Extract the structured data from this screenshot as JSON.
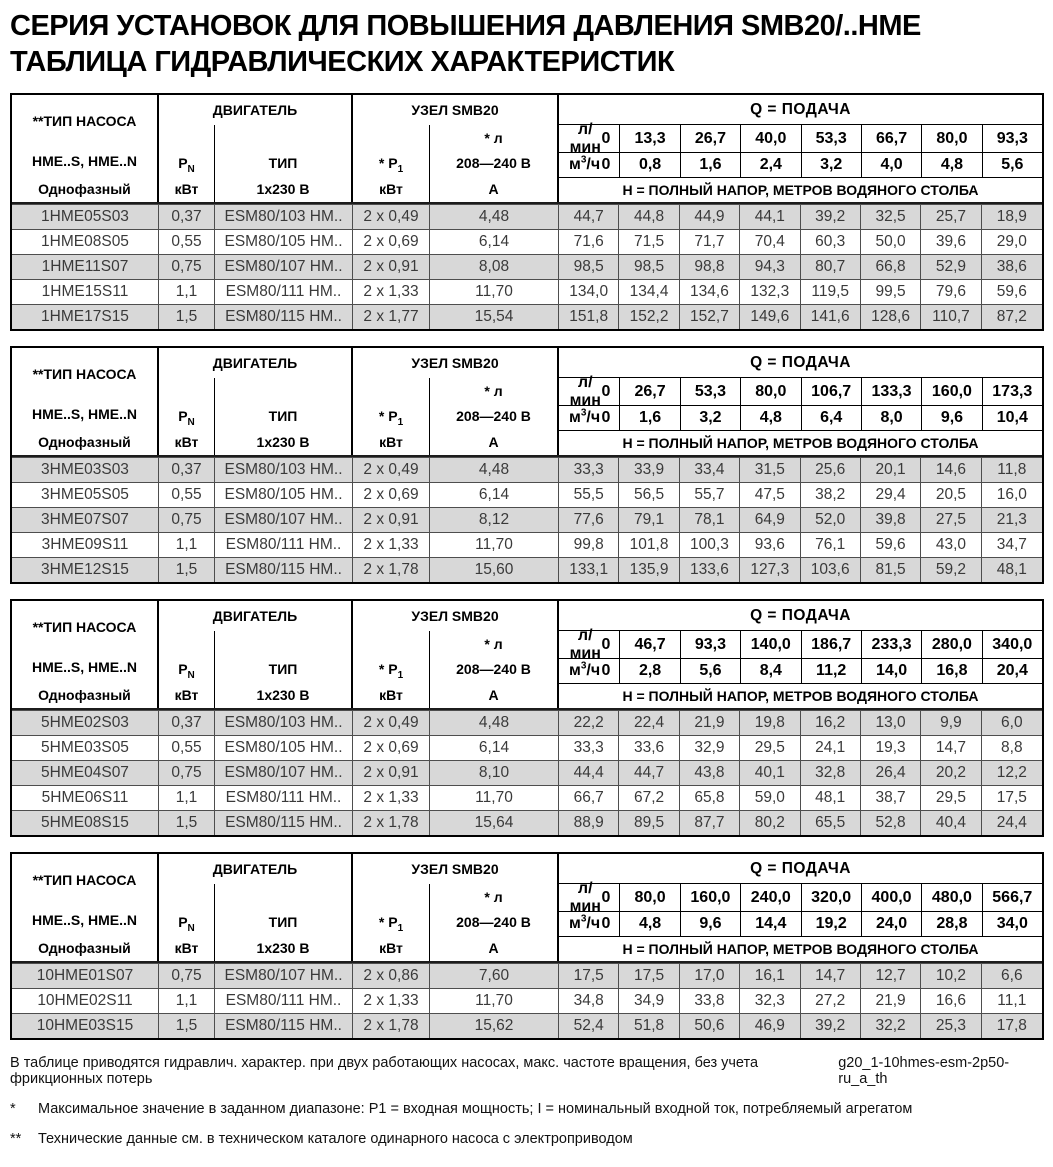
{
  "title": {
    "line1": "СЕРИЯ УСТАНОВОК ДЛЯ ПОВЫШЕНИЯ ДАВЛЕНИЯ SMB20/..HME",
    "line2": "ТАБЛИЦА ГИДРАВЛИЧЕСКИХ ХАРАКТЕРИСТИК"
  },
  "labels": {
    "pump_type": "**ТИП НАСОСА",
    "pump_models": "HME..S, HME..N",
    "pump_phase": "Однофазный",
    "motor": "ДВИГАТЕЛЬ",
    "pn_main": "P",
    "pn_sub": "N",
    "kw": "кВт",
    "type": "ТИП",
    "voltage": "1x230 В",
    "unit": "УЗЕЛ SMB20",
    "p1_main": "* P",
    "p1_sub": "1",
    "current": "* л",
    "range": "208—240 В",
    "amp": "А",
    "q_header": "Q = ПОДАЧА",
    "lmin": "л/мин",
    "m3h_main": "м",
    "m3h_sup": "3",
    "m3h_rest": "/ч",
    "zero": "0",
    "h_header": "Н = ПОЛНЫЙ НАПОР, МЕТРОВ ВОДЯНОГО СТОЛБА"
  },
  "tables": [
    {
      "flow_lmin": [
        "13,3",
        "26,7",
        "40,0",
        "53,3",
        "66,7",
        "80,0",
        "93,3"
      ],
      "flow_m3h": [
        "0,8",
        "1,6",
        "2,4",
        "3,2",
        "4,0",
        "4,8",
        "5,6"
      ],
      "rows": [
        {
          "model": "1HME05S03",
          "pn": "0,37",
          "type": "ESM80/103 HM..",
          "p1": "2 x 0,49",
          "amps": "4,48",
          "heads": [
            "44,7",
            "44,8",
            "44,9",
            "44,1",
            "39,2",
            "32,5",
            "25,7",
            "18,9"
          ]
        },
        {
          "model": "1HME08S05",
          "pn": "0,55",
          "type": "ESM80/105 HM..",
          "p1": "2 x 0,69",
          "amps": "6,14",
          "heads": [
            "71,6",
            "71,5",
            "71,7",
            "70,4",
            "60,3",
            "50,0",
            "39,6",
            "29,0"
          ]
        },
        {
          "model": "1HME11S07",
          "pn": "0,75",
          "type": "ESM80/107 HM..",
          "p1": "2 x 0,91",
          "amps": "8,08",
          "heads": [
            "98,5",
            "98,5",
            "98,8",
            "94,3",
            "80,7",
            "66,8",
            "52,9",
            "38,6"
          ]
        },
        {
          "model": "1HME15S11",
          "pn": "1,1",
          "type": "ESM80/111 HM..",
          "p1": "2 x 1,33",
          "amps": "11,70",
          "heads": [
            "134,0",
            "134,4",
            "134,6",
            "132,3",
            "119,5",
            "99,5",
            "79,6",
            "59,6"
          ]
        },
        {
          "model": "1HME17S15",
          "pn": "1,5",
          "type": "ESM80/115 HM..",
          "p1": "2 x 1,77",
          "amps": "15,54",
          "heads": [
            "151,8",
            "152,2",
            "152,7",
            "149,6",
            "141,6",
            "128,6",
            "110,7",
            "87,2"
          ]
        }
      ]
    },
    {
      "flow_lmin": [
        "26,7",
        "53,3",
        "80,0",
        "106,7",
        "133,3",
        "160,0",
        "173,3"
      ],
      "flow_m3h": [
        "1,6",
        "3,2",
        "4,8",
        "6,4",
        "8,0",
        "9,6",
        "10,4"
      ],
      "rows": [
        {
          "model": "3HME03S03",
          "pn": "0,37",
          "type": "ESM80/103 HM..",
          "p1": "2 x 0,49",
          "amps": "4,48",
          "heads": [
            "33,3",
            "33,9",
            "33,4",
            "31,5",
            "25,6",
            "20,1",
            "14,6",
            "11,8"
          ]
        },
        {
          "model": "3HME05S05",
          "pn": "0,55",
          "type": "ESM80/105 HM..",
          "p1": "2 x 0,69",
          "amps": "6,14",
          "heads": [
            "55,5",
            "56,5",
            "55,7",
            "47,5",
            "38,2",
            "29,4",
            "20,5",
            "16,0"
          ]
        },
        {
          "model": "3HME07S07",
          "pn": "0,75",
          "type": "ESM80/107 HM..",
          "p1": "2 x 0,91",
          "amps": "8,12",
          "heads": [
            "77,6",
            "79,1",
            "78,1",
            "64,9",
            "52,0",
            "39,8",
            "27,5",
            "21,3"
          ]
        },
        {
          "model": "3HME09S11",
          "pn": "1,1",
          "type": "ESM80/111 HM..",
          "p1": "2 x 1,33",
          "amps": "11,70",
          "heads": [
            "99,8",
            "101,8",
            "100,3",
            "93,6",
            "76,1",
            "59,6",
            "43,0",
            "34,7"
          ]
        },
        {
          "model": "3HME12S15",
          "pn": "1,5",
          "type": "ESM80/115 HM..",
          "p1": "2 x 1,78",
          "amps": "15,60",
          "heads": [
            "133,1",
            "135,9",
            "133,6",
            "127,3",
            "103,6",
            "81,5",
            "59,2",
            "48,1"
          ]
        }
      ]
    },
    {
      "flow_lmin": [
        "46,7",
        "93,3",
        "140,0",
        "186,7",
        "233,3",
        "280,0",
        "340,0"
      ],
      "flow_m3h": [
        "2,8",
        "5,6",
        "8,4",
        "11,2",
        "14,0",
        "16,8",
        "20,4"
      ],
      "rows": [
        {
          "model": "5HME02S03",
          "pn": "0,37",
          "type": "ESM80/103 HM..",
          "p1": "2 x 0,49",
          "amps": "4,48",
          "heads": [
            "22,2",
            "22,4",
            "21,9",
            "19,8",
            "16,2",
            "13,0",
            "9,9",
            "6,0"
          ]
        },
        {
          "model": "5HME03S05",
          "pn": "0,55",
          "type": "ESM80/105 HM..",
          "p1": "2 x 0,69",
          "amps": "6,14",
          "heads": [
            "33,3",
            "33,6",
            "32,9",
            "29,5",
            "24,1",
            "19,3",
            "14,7",
            "8,8"
          ]
        },
        {
          "model": "5HME04S07",
          "pn": "0,75",
          "type": "ESM80/107 HM..",
          "p1": "2 x 0,91",
          "amps": "8,10",
          "heads": [
            "44,4",
            "44,7",
            "43,8",
            "40,1",
            "32,8",
            "26,4",
            "20,2",
            "12,2"
          ]
        },
        {
          "model": "5HME06S11",
          "pn": "1,1",
          "type": "ESM80/111 HM..",
          "p1": "2 x 1,33",
          "amps": "11,70",
          "heads": [
            "66,7",
            "67,2",
            "65,8",
            "59,0",
            "48,1",
            "38,7",
            "29,5",
            "17,5"
          ]
        },
        {
          "model": "5HME08S15",
          "pn": "1,5",
          "type": "ESM80/115 HM..",
          "p1": "2 x 1,78",
          "amps": "15,64",
          "heads": [
            "88,9",
            "89,5",
            "87,7",
            "80,2",
            "65,5",
            "52,8",
            "40,4",
            "24,4"
          ]
        }
      ]
    },
    {
      "flow_lmin": [
        "80,0",
        "160,0",
        "240,0",
        "320,0",
        "400,0",
        "480,0",
        "566,7"
      ],
      "flow_m3h": [
        "4,8",
        "9,6",
        "14,4",
        "19,2",
        "24,0",
        "28,8",
        "34,0"
      ],
      "rows": [
        {
          "model": "10HME01S07",
          "pn": "0,75",
          "type": "ESM80/107 HM..",
          "p1": "2 x 0,86",
          "amps": "7,60",
          "heads": [
            "17,5",
            "17,5",
            "17,0",
            "16,1",
            "14,7",
            "12,7",
            "10,2",
            "6,6"
          ]
        },
        {
          "model": "10HME02S11",
          "pn": "1,1",
          "type": "ESM80/111 HM..",
          "p1": "2 x 1,33",
          "amps": "11,70",
          "heads": [
            "34,8",
            "34,9",
            "33,8",
            "32,3",
            "27,2",
            "21,9",
            "16,6",
            "11,1"
          ]
        },
        {
          "model": "10HME03S15",
          "pn": "1,5",
          "type": "ESM80/115 HM..",
          "p1": "2 x 1,78",
          "amps": "15,62",
          "heads": [
            "52,4",
            "51,8",
            "50,6",
            "46,9",
            "39,2",
            "32,2",
            "25,3",
            "17,8"
          ]
        }
      ]
    }
  ],
  "footnotes": {
    "note": "В таблице приводятся гидравлич. характер. при двух работающих насосах, макс. частоте вращения, без учета фрикционных потерь",
    "code": "g20_1-10hmes-esm-2p50-ru_a_th",
    "star1_mark": "*",
    "star1_text": "Максимальное значение в заданном диапазоне: P1 = входная мощность; I = номинальный входной ток, потребляемый агрегатом",
    "star2_mark": "**",
    "star2_text": "Технические данные см. в техническом каталоге одинарного насоса с электроприводом"
  }
}
